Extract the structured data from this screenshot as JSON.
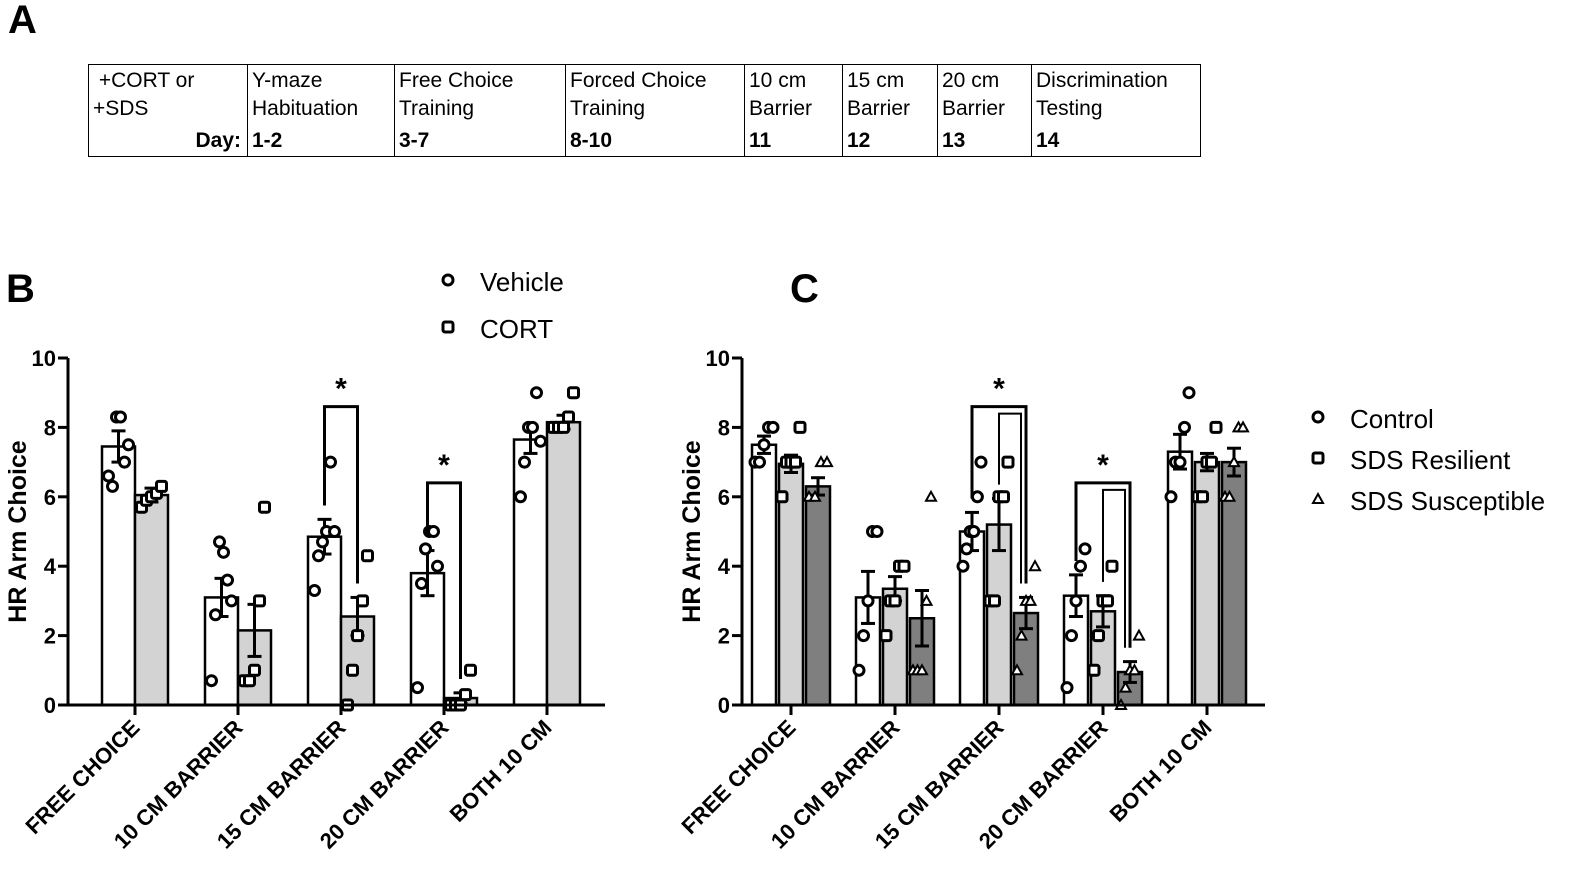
{
  "panel_labels": {
    "a": "A",
    "b": "B",
    "c": "C"
  },
  "protocol_table": {
    "columns": [
      {
        "label": " +CORT or\n+SDS",
        "day": "Day:"
      },
      {
        "label": "Y-maze\nHabituation",
        "day": "1-2"
      },
      {
        "label": "Free Choice\nTraining",
        "day": "3-7"
      },
      {
        "label": "Forced Choice\nTraining",
        "day": "8-10"
      },
      {
        "label": "10 cm\nBarrier",
        "day": "11"
      },
      {
        "label": "15 cm\nBarrier",
        "day": "12"
      },
      {
        "label": "20 cm\nBarrier",
        "day": "13"
      },
      {
        "label": "Discrimination\nTesting",
        "day": "14"
      }
    ]
  },
  "chart_data": [
    {
      "id": "B",
      "type": "bar",
      "title": "",
      "ylabel": "HR Arm Choice",
      "xlabel": "",
      "ylim": [
        0,
        10
      ],
      "yticks": [
        "0",
        "2",
        "4",
        "6",
        "8",
        "10"
      ],
      "categories": [
        "FREE CHOICE",
        "10 CM BARRIER",
        "15 CM BARRIER",
        "20 CM BARRIER",
        "BOTH 10 CM"
      ],
      "legend_position": "top",
      "series": [
        {
          "name": "Vehicle",
          "marker": "circle",
          "fill": "#ffffff",
          "values": [
            7.45,
            3.1,
            4.85,
            3.8,
            7.65
          ],
          "sem": [
            0.45,
            0.55,
            0.5,
            0.65,
            0.4
          ],
          "points": [
            [
              6.6,
              6.3,
              8.3,
              8.3,
              7.0,
              7.5
            ],
            [
              0.7,
              2.6,
              4.7,
              4.4,
              3.6,
              3.0
            ],
            [
              3.3,
              4.3,
              4.7,
              5.0,
              7.0,
              5.0
            ],
            [
              0.5,
              3.5,
              4.5,
              5.0,
              5.0,
              4.0
            ],
            [
              6.0,
              7.0,
              8.0,
              8.0,
              9.0,
              7.6
            ]
          ]
        },
        {
          "name": "CORT",
          "marker": "square",
          "fill": "#d3d3d3",
          "values": [
            6.05,
            2.15,
            2.55,
            0.2,
            8.15
          ],
          "sem": [
            0.2,
            0.75,
            0.55,
            0.15,
            0.2
          ],
          "points": [
            [
              5.7,
              5.9,
              6.0,
              6.1,
              6.3
            ],
            [
              0.7,
              0.7,
              1.0,
              3.0,
              5.7
            ],
            [
              0.0,
              1.0,
              2.0,
              3.0,
              4.3
            ],
            [
              0.0,
              0.0,
              0.0,
              0.3,
              1.0
            ],
            [
              8.0,
              8.0,
              8.0,
              8.3,
              9.0
            ]
          ]
        }
      ],
      "annotations": [
        {
          "text": "*",
          "category_index": 2,
          "bracket": [
            0,
            1
          ],
          "y": 8.6
        },
        {
          "text": "*",
          "category_index": 3,
          "bracket": [
            0,
            1
          ],
          "y": 6.4
        }
      ]
    },
    {
      "id": "C",
      "type": "bar",
      "title": "",
      "ylabel": "HR Arm Choice",
      "xlabel": "",
      "ylim": [
        0,
        10
      ],
      "yticks": [
        "0",
        "2",
        "4",
        "6",
        "8",
        "10"
      ],
      "categories": [
        "FREE CHOICE",
        "10 CM BARRIER",
        "15 CM BARRIER",
        "20 CM BARRIER",
        "BOTH 10 CM"
      ],
      "legend_position": "right",
      "series": [
        {
          "name": "Control",
          "marker": "circle",
          "fill": "#ffffff",
          "values": [
            7.5,
            3.1,
            5.0,
            3.15,
            7.3
          ],
          "sem": [
            0.25,
            0.75,
            0.55,
            0.6,
            0.5
          ],
          "points": [
            [
              7.0,
              7.0,
              7.5,
              8.0,
              8.0
            ],
            [
              1.0,
              2.0,
              3.0,
              5.0,
              5.0
            ],
            [
              4.0,
              4.5,
              5.0,
              5.0,
              6.0,
              7.0
            ],
            [
              0.5,
              2.0,
              3.0,
              4.0,
              4.5
            ],
            [
              6.0,
              7.0,
              7.0,
              8.0,
              9.0
            ]
          ]
        },
        {
          "name": "SDS Resilient",
          "marker": "square",
          "fill": "#d3d3d3",
          "values": [
            6.95,
            3.35,
            5.2,
            2.7,
            7.0
          ],
          "sem": [
            0.25,
            0.35,
            0.75,
            0.45,
            0.25
          ],
          "points": [
            [
              6.0,
              7.0,
              7.0,
              7.0,
              8.0
            ],
            [
              2.0,
              3.0,
              3.0,
              4.0,
              4.0
            ],
            [
              3.0,
              3.0,
              6.0,
              6.0,
              7.0
            ],
            [
              1.0,
              2.0,
              3.0,
              3.0,
              4.0
            ],
            [
              6.0,
              6.0,
              7.0,
              7.0,
              8.0
            ]
          ]
        },
        {
          "name": "SDS Susceptible",
          "marker": "triangle",
          "fill": "#7f7f7f",
          "values": [
            6.3,
            2.5,
            2.65,
            0.95,
            7.0
          ],
          "sem": [
            0.25,
            0.8,
            0.45,
            0.3,
            0.4
          ],
          "points": [
            [
              6.0,
              6.0,
              7.0,
              7.0
            ],
            [
              1.0,
              1.0,
              1.0,
              3.0,
              6.0
            ],
            [
              1.0,
              2.0,
              3.0,
              3.0,
              4.0
            ],
            [
              0.0,
              0.5,
              1.0,
              1.0,
              2.0
            ],
            [
              6.0,
              6.0,
              7.0,
              8.0,
              8.0
            ]
          ]
        }
      ],
      "annotations": [
        {
          "text": "*",
          "category_index": 2,
          "bracket": [
            0,
            2
          ],
          "inner": [
            1,
            2
          ],
          "y": 8.6
        },
        {
          "text": "*",
          "category_index": 3,
          "bracket": [
            0,
            2
          ],
          "inner": [
            1,
            2
          ],
          "y": 6.4
        }
      ]
    }
  ]
}
